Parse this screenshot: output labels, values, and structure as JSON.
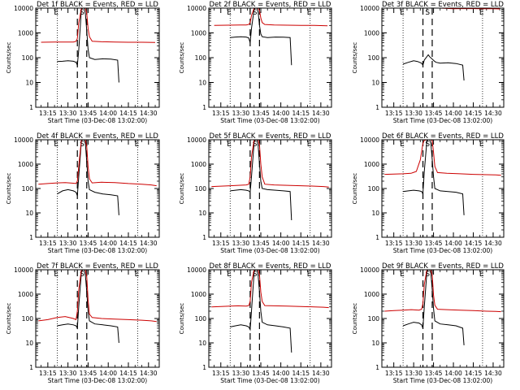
{
  "window": {
    "title": ""
  },
  "colors": {
    "events": "#000000",
    "lld": "#cc0000",
    "axes": "#000000",
    "background": "#ffffff"
  },
  "shared": {
    "y_label": "Counts/sec",
    "x_label": "Start Time (03-Dec-08 13:02:00)",
    "x_ticks": [
      "13:15",
      "13:30",
      "13:45",
      "14:00",
      "14:15",
      "14:30"
    ],
    "y_ticks": [
      "1",
      "10",
      "100",
      "1000",
      "10000"
    ],
    "marker_labels": {
      "s": "S",
      "e1": "E",
      "e2": "E"
    }
  },
  "chart_data": [
    {
      "type": "line",
      "title": "Det 1f BLACK = Events, RED = LLD",
      "xlabel": "Start Time (03-Dec-08 13:02:00)",
      "ylabel": "Counts/sec",
      "x_unit": "minutes after 13:00",
      "xlim": [
        6,
        98
      ],
      "ylim": [
        1,
        10000
      ],
      "y_scale": "log",
      "grid": false,
      "dotted_lines_x": [
        22,
        82
      ],
      "dashed_lines_x": [
        37,
        44
      ],
      "series": [
        {
          "name": "BLACK = Events",
          "color": "#000000",
          "x": [
            22,
            26,
            30,
            34,
            36,
            37,
            38,
            40,
            41,
            42,
            43,
            44,
            45,
            46,
            50,
            56,
            62,
            67,
            68
          ],
          "values": [
            70,
            72,
            75,
            72,
            65,
            50,
            200,
            9000,
            10000,
            10000,
            6000,
            1200,
            220,
            100,
            85,
            90,
            88,
            80,
            10
          ]
        },
        {
          "name": "RED = LLD",
          "color": "#cc0000",
          "x": [
            10,
            20,
            30,
            34,
            36,
            37,
            38,
            40,
            41,
            42,
            43,
            44,
            45,
            46,
            48,
            55,
            65,
            75,
            85,
            95
          ],
          "values": [
            420,
            430,
            425,
            430,
            460,
            600,
            2500,
            10000,
            10000,
            10000,
            10000,
            6000,
            1500,
            700,
            460,
            440,
            430,
            420,
            420,
            410
          ]
        }
      ]
    },
    {
      "type": "line",
      "title": "Det 2f BLACK = Events, RED = LLD",
      "xlabel": "Start Time (03-Dec-08 13:02:00)",
      "ylabel": "Counts/sec",
      "x_unit": "minutes after 13:00",
      "xlim": [
        6,
        98
      ],
      "ylim": [
        1,
        10000
      ],
      "y_scale": "log",
      "grid": false,
      "dotted_lines_x": [
        22,
        82
      ],
      "dashed_lines_x": [
        37,
        44
      ],
      "series": [
        {
          "name": "BLACK = Events",
          "color": "#000000",
          "x": [
            22,
            26,
            30,
            34,
            36,
            37,
            38,
            40,
            41,
            42,
            43,
            44,
            45,
            46,
            50,
            56,
            62,
            67,
            68
          ],
          "values": [
            650,
            680,
            700,
            680,
            620,
            400,
            1500,
            9000,
            10000,
            10000,
            7000,
            2000,
            900,
            700,
            650,
            680,
            670,
            650,
            50
          ]
        },
        {
          "name": "RED = LLD",
          "color": "#cc0000",
          "x": [
            10,
            20,
            30,
            34,
            36,
            37,
            38,
            40,
            41,
            42,
            43,
            44,
            45,
            46,
            48,
            55,
            65,
            75,
            85,
            95
          ],
          "values": [
            2000,
            2050,
            2100,
            2100,
            2200,
            2600,
            5000,
            10000,
            10000,
            10000,
            10000,
            8000,
            4000,
            2600,
            2200,
            2100,
            2050,
            2000,
            2000,
            1950
          ]
        }
      ]
    },
    {
      "type": "line",
      "title": "Det 3f BLACK = Events, RED = LLD",
      "xlabel": "Start Time (03-Dec-08 13:02:00)",
      "ylabel": "Counts/sec",
      "x_unit": "minutes after 13:00",
      "xlim": [
        6,
        98
      ],
      "ylim": [
        1,
        10000
      ],
      "y_scale": "log",
      "grid": false,
      "dotted_lines_x": [
        22,
        82
      ],
      "dashed_lines_x": [
        37,
        44
      ],
      "series": [
        {
          "name": "BLACK = Events",
          "color": "#000000",
          "x": [
            22,
            26,
            30,
            33,
            36,
            37,
            38,
            41,
            42,
            46,
            47,
            50,
            56,
            62,
            67,
            68
          ],
          "values": [
            55,
            65,
            75,
            70,
            60,
            50,
            80,
            130,
            110,
            70,
            65,
            60,
            62,
            58,
            50,
            12
          ]
        },
        {
          "name": "RED = LLD",
          "color": "#cc0000",
          "x": [
            10,
            20,
            30,
            36,
            37,
            40,
            44,
            46,
            50,
            60,
            70,
            80,
            90,
            95
          ],
          "values": [
            10000,
            10000,
            10000,
            10000,
            10000,
            10000,
            10000,
            10000,
            10000,
            9500,
            9600,
            9500,
            9400,
            9300
          ]
        }
      ]
    },
    {
      "type": "line",
      "title": "Det 4f BLACK = Events, RED = LLD",
      "xlabel": "Start Time (03-Dec-08 13:02:00)",
      "ylabel": "Counts/sec",
      "x_unit": "minutes after 13:00",
      "xlim": [
        6,
        98
      ],
      "ylim": [
        1,
        10000
      ],
      "y_scale": "log",
      "grid": false,
      "dotted_lines_x": [
        22,
        82
      ],
      "dashed_lines_x": [
        37,
        44
      ],
      "series": [
        {
          "name": "BLACK = Events",
          "color": "#000000",
          "x": [
            22,
            26,
            30,
            34,
            36,
            37,
            38,
            40,
            41,
            42,
            43,
            44,
            45,
            46,
            50,
            56,
            62,
            67,
            68
          ],
          "values": [
            60,
            80,
            90,
            80,
            70,
            50,
            300,
            9000,
            10000,
            10000,
            7000,
            1200,
            200,
            90,
            70,
            60,
            55,
            50,
            8
          ]
        },
        {
          "name": "RED = LLD",
          "color": "#cc0000",
          "x": [
            8,
            15,
            22,
            28,
            34,
            36,
            37,
            38,
            40,
            41,
            42,
            43,
            44,
            45,
            46,
            48,
            55,
            65,
            75,
            85,
            92,
            96
          ],
          "values": [
            150,
            160,
            170,
            175,
            165,
            160,
            200,
            800,
            10000,
            10000,
            10000,
            10000,
            5000,
            800,
            250,
            170,
            180,
            175,
            160,
            150,
            140,
            130
          ]
        }
      ]
    },
    {
      "type": "line",
      "title": "Det 5f BLACK = Events, RED = LLD",
      "xlabel": "Start Time (03-Dec-08 13:02:00)",
      "ylabel": "Counts/sec",
      "x_unit": "minutes after 13:00",
      "xlim": [
        6,
        98
      ],
      "ylim": [
        1,
        10000
      ],
      "y_scale": "log",
      "grid": false,
      "dotted_lines_x": [
        22,
        82
      ],
      "dashed_lines_x": [
        37,
        44
      ],
      "series": [
        {
          "name": "BLACK = Events",
          "color": "#000000",
          "x": [
            22,
            26,
            30,
            34,
            36,
            37,
            38,
            40,
            41,
            42,
            43,
            44,
            45,
            46,
            50,
            56,
            62,
            67,
            68
          ],
          "values": [
            80,
            85,
            90,
            85,
            80,
            70,
            300,
            8000,
            10000,
            10000,
            6000,
            1000,
            200,
            100,
            90,
            85,
            80,
            75,
            5
          ]
        },
        {
          "name": "RED = LLD",
          "color": "#cc0000",
          "x": [
            8,
            15,
            22,
            28,
            34,
            36,
            37,
            38,
            40,
            41,
            42,
            43,
            44,
            45,
            46,
            48,
            55,
            65,
            75,
            85,
            92,
            96
          ],
          "values": [
            120,
            125,
            130,
            135,
            140,
            150,
            300,
            2000,
            10000,
            10000,
            10000,
            10000,
            6000,
            1000,
            300,
            150,
            140,
            135,
            130,
            125,
            120,
            115
          ]
        }
      ]
    },
    {
      "type": "line",
      "title": "Det 6f BLACK = Events, RED = LLD",
      "xlabel": "Start Time (03-Dec-08 13:02:00)",
      "ylabel": "Counts/sec",
      "x_unit": "minutes after 13:00",
      "xlim": [
        6,
        98
      ],
      "ylim": [
        1,
        10000
      ],
      "y_scale": "log",
      "grid": false,
      "dotted_lines_x": [
        22,
        82
      ],
      "dashed_lines_x": [
        37,
        44
      ],
      "series": [
        {
          "name": "BLACK = Events",
          "color": "#000000",
          "x": [
            22,
            26,
            30,
            34,
            36,
            37,
            38,
            40,
            41,
            42,
            43,
            44,
            45,
            46,
            50,
            56,
            62,
            67,
            68
          ],
          "values": [
            75,
            80,
            85,
            80,
            75,
            60,
            500,
            9000,
            10000,
            10000,
            7000,
            1500,
            300,
            100,
            80,
            75,
            70,
            60,
            8
          ]
        },
        {
          "name": "RED = LLD",
          "color": "#cc0000",
          "x": [
            8,
            15,
            22,
            28,
            32,
            35,
            37,
            38,
            40,
            41,
            42,
            43,
            44,
            45,
            46,
            48,
            55,
            65,
            75,
            85,
            92,
            96
          ],
          "values": [
            380,
            390,
            400,
            420,
            500,
            1500,
            7000,
            9500,
            10000,
            10000,
            10000,
            10000,
            9000,
            3000,
            800,
            450,
            420,
            400,
            380,
            370,
            360,
            350
          ]
        }
      ]
    },
    {
      "type": "line",
      "title": "Det 7f BLACK = Events, RED = LLD",
      "xlabel": "Start Time (03-Dec-08 13:02:00)",
      "ylabel": "Counts/sec",
      "x_unit": "minutes after 13:00",
      "xlim": [
        6,
        98
      ],
      "ylim": [
        1,
        10000
      ],
      "y_scale": "log",
      "grid": false,
      "dotted_lines_x": [
        22,
        82
      ],
      "dashed_lines_x": [
        37,
        44
      ],
      "series": [
        {
          "name": "BLACK = Events",
          "color": "#000000",
          "x": [
            22,
            26,
            30,
            34,
            36,
            37,
            38,
            40,
            41,
            42,
            43,
            44,
            45,
            46,
            50,
            56,
            62,
            67,
            68
          ],
          "values": [
            50,
            55,
            60,
            55,
            50,
            40,
            300,
            8000,
            10000,
            10000,
            6000,
            1200,
            200,
            80,
            60,
            55,
            50,
            45,
            10
          ]
        },
        {
          "name": "RED = LLD",
          "color": "#cc0000",
          "x": [
            8,
            15,
            22,
            28,
            34,
            36,
            37,
            38,
            40,
            41,
            42,
            43,
            44,
            45,
            46,
            48,
            55,
            65,
            75,
            85,
            92,
            96
          ],
          "values": [
            80,
            90,
            110,
            120,
            100,
            90,
            200,
            1500,
            10000,
            10000,
            10000,
            10000,
            5000,
            600,
            150,
            110,
            100,
            95,
            90,
            85,
            80,
            75
          ]
        }
      ]
    },
    {
      "type": "line",
      "title": "Det 8f BLACK = Events, RED = LLD",
      "xlabel": "Start Time (03-Dec-08 13:02:00)",
      "ylabel": "Counts/sec",
      "x_unit": "minutes after 13:00",
      "xlim": [
        6,
        98
      ],
      "ylim": [
        1,
        10000
      ],
      "y_scale": "log",
      "grid": false,
      "dotted_lines_x": [
        22,
        82
      ],
      "dashed_lines_x": [
        37,
        44
      ],
      "series": [
        {
          "name": "BLACK = Events",
          "color": "#000000",
          "x": [
            22,
            26,
            30,
            34,
            36,
            37,
            38,
            40,
            41,
            42,
            43,
            44,
            45,
            46,
            50,
            56,
            62,
            67,
            68
          ],
          "values": [
            45,
            50,
            55,
            50,
            45,
            35,
            200,
            8000,
            10000,
            10000,
            6000,
            1200,
            200,
            70,
            55,
            50,
            45,
            40,
            4
          ]
        },
        {
          "name": "RED = LLD",
          "color": "#cc0000",
          "x": [
            8,
            15,
            22,
            28,
            34,
            36,
            37,
            38,
            40,
            41,
            42,
            43,
            44,
            45,
            46,
            48,
            55,
            65,
            75,
            85,
            92,
            96
          ],
          "values": [
            300,
            310,
            320,
            330,
            320,
            340,
            500,
            3000,
            10000,
            10000,
            10000,
            10000,
            6000,
            1200,
            500,
            340,
            330,
            320,
            310,
            300,
            290,
            280
          ]
        }
      ]
    },
    {
      "type": "line",
      "title": "Det 9f BLACK = Events, RED = LLD",
      "xlabel": "Start Time (03-Dec-08 13:02:00)",
      "ylabel": "Counts/sec",
      "x_unit": "minutes after 13:00",
      "xlim": [
        6,
        98
      ],
      "ylim": [
        1,
        10000
      ],
      "y_scale": "log",
      "grid": false,
      "dotted_lines_x": [
        22,
        82
      ],
      "dashed_lines_x": [
        37,
        44
      ],
      "series": [
        {
          "name": "BLACK = Events",
          "color": "#000000",
          "x": [
            22,
            26,
            30,
            34,
            36,
            37,
            38,
            40,
            41,
            42,
            43,
            44,
            45,
            46,
            50,
            56,
            62,
            67,
            68
          ],
          "values": [
            50,
            60,
            70,
            65,
            55,
            40,
            300,
            8000,
            10000,
            10000,
            7000,
            1500,
            250,
            80,
            60,
            55,
            50,
            40,
            8
          ]
        },
        {
          "name": "RED = LLD",
          "color": "#cc0000",
          "x": [
            8,
            15,
            22,
            28,
            34,
            36,
            37,
            38,
            40,
            41,
            42,
            43,
            44,
            45,
            46,
            48,
            55,
            65,
            75,
            85,
            92,
            96
          ],
          "values": [
            200,
            210,
            220,
            230,
            220,
            240,
            400,
            2500,
            10000,
            10000,
            10000,
            10000,
            6000,
            900,
            350,
            240,
            230,
            220,
            210,
            200,
            195,
            190
          ]
        }
      ]
    }
  ]
}
